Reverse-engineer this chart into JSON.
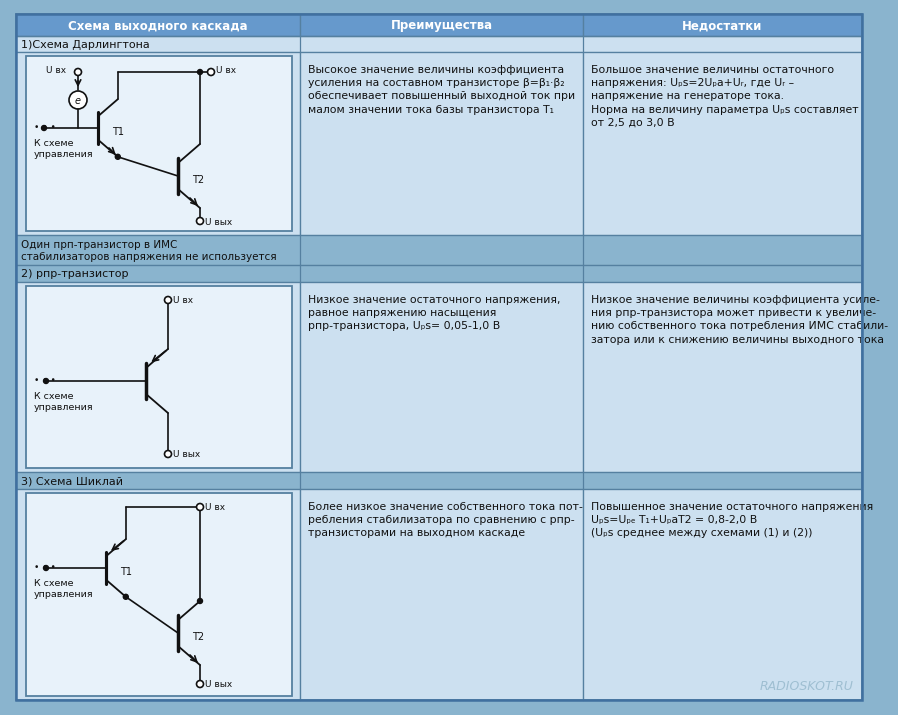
{
  "title_col1": "Схема выходного каскада",
  "title_col2": "Преимущества",
  "title_col3": "Недостатки",
  "row1_label": "1)Схема Дарлингтона",
  "row1_sublabel": "Один прп-транзистор в ИМС\nстабилизаторов напряжения не используется",
  "row2_label": "2) рпр-транзистор",
  "row3_label": "3) Схема Шиклай",
  "row1_adv": "Высокое значение величины коэффициента\nусиления на составном транзисторе β=β₁·β₂\nобеспечивает повышенный выходной ток при\nмалом значении тока базы транзистора T₁",
  "row1_dis": "Большое значение величины остаточного\nнапряжения: Uₚs=2Uₚa+Uᵣ, где Uᵣ –\nнапряжение на генераторе тока.\nНорма на величину параметра Uₚs составляет\nот 2,5 до 3,0 В",
  "row2_adv": "Низкое значение остаточного напряжения,\nравное напряжению насыщения\nрпр-транзистора, Uₚs= 0,05-1,0 В",
  "row2_dis": "Низкое значение величины коэффициента усиле-\nния рпр-транзистора может привести к увеличе-\nнию собственного тока потребления ИМС стабили-\nзатора или к снижению величины выходного тока",
  "row3_adv": "Более низкое значение собственного тока пот-\nребления стабилизатора по сравнению с рпр-\nтранзисторами на выходном каскаде",
  "row3_dis": "Повышенное значение остаточного напряжения\nUₚs=Uₚₑ T₁+UₚaT2 = 0,8-2,0 В\n(Uₚs среднее между схемами (1) и (2))",
  "bg_header": "#6699cc",
  "bg_cell_light": "#cce0f0",
  "bg_row_label": "#9dbdd6",
  "bg_diagram": "#e8f2fa",
  "bg_outer": "#8ab4ce",
  "border_color": "#5580a0",
  "text_dark": "#111111",
  "watermark": "RADIOSKOT.RU"
}
